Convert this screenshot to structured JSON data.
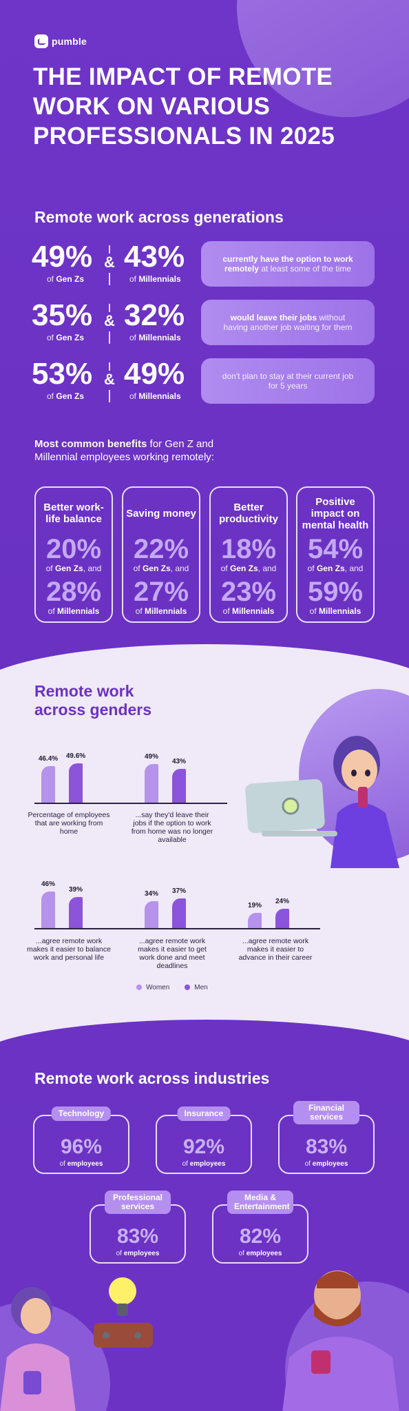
{
  "brand": {
    "logo_text": "pumble"
  },
  "title": "THE IMPACT OF REMOTE WORK ON VARIOUS PROFESSIONALS IN 2025",
  "generations": {
    "heading": "Remote work across generations",
    "rows": [
      {
        "genz_pct": "49%",
        "genz_label": "Gen Zs",
        "mill_pct": "43%",
        "mill_label": "Millennials",
        "card_bold": "currently have the option to work remotely",
        "card_rest": " at least some of the time"
      },
      {
        "genz_pct": "35%",
        "genz_label": "Gen Zs",
        "mill_pct": "32%",
        "mill_label": "Millennials",
        "card_bold": "would leave their jobs",
        "card_rest": " without having another job waiting for them"
      },
      {
        "genz_pct": "53%",
        "genz_label": "Gen Zs",
        "mill_pct": "49%",
        "mill_label": "Millennials",
        "card_bold": "",
        "card_rest": "don't plan to stay at their current job for 5 years"
      }
    ],
    "of_label": "of ",
    "amp": "&"
  },
  "benefits": {
    "intro_bold": "Most common benefits",
    "intro_rest": " for Gen Z and Millennial employees working remotely:",
    "cards": [
      {
        "title": "Better work-life balance",
        "genz_pct": "20%",
        "mill_pct": "28%"
      },
      {
        "title": "Saving money",
        "genz_pct": "22%",
        "mill_pct": "27%"
      },
      {
        "title": "Better productivity",
        "genz_pct": "18%",
        "mill_pct": "23%"
      },
      {
        "title": "Positive impact on mental health",
        "genz_pct": "54%",
        "mill_pct": "59%"
      }
    ],
    "of": "of ",
    "genz": "Gen Zs",
    "and": ", and",
    "mill": "Millennials"
  },
  "genders": {
    "heading_line1": "Remote work",
    "heading_line2": "across genders",
    "legend_women": "Women",
    "legend_men": "Men",
    "colors": {
      "women": "#b592ec",
      "men": "#8c54da"
    }
  },
  "chart_data": {
    "type": "bar",
    "series": [
      {
        "name": "Women",
        "values": [
          46.4,
          49,
          46,
          34,
          19
        ]
      },
      {
        "name": "Men",
        "values": [
          49.6,
          43,
          39,
          37,
          24
        ]
      }
    ],
    "labels": [
      [
        "46.4%",
        "49.6%"
      ],
      [
        "49%",
        "43%"
      ],
      [
        "46%",
        "39%"
      ],
      [
        "34%",
        "37%"
      ],
      [
        "19%",
        "24%"
      ]
    ],
    "categories": [
      "Percentage of employees that are working from home",
      "...say they'd leave their jobs if the option to work from home was no longer available",
      "...agree remote work makes it easier to balance work and personal life",
      "...agree remote work makes it easier to get work done and meet deadlines",
      "...agree remote work makes it easier to advance in their career"
    ]
  },
  "industries": {
    "heading": "Remote work across industries",
    "of": "of ",
    "employees": "employees",
    "items": [
      {
        "name": "Technology",
        "pct": "96%"
      },
      {
        "name": "Insurance",
        "pct": "92%"
      },
      {
        "name": "Financial services",
        "pct": "83%"
      },
      {
        "name": "Professional services",
        "pct": "83%"
      },
      {
        "name": "Media & Entertainment",
        "pct": "82%"
      }
    ]
  }
}
